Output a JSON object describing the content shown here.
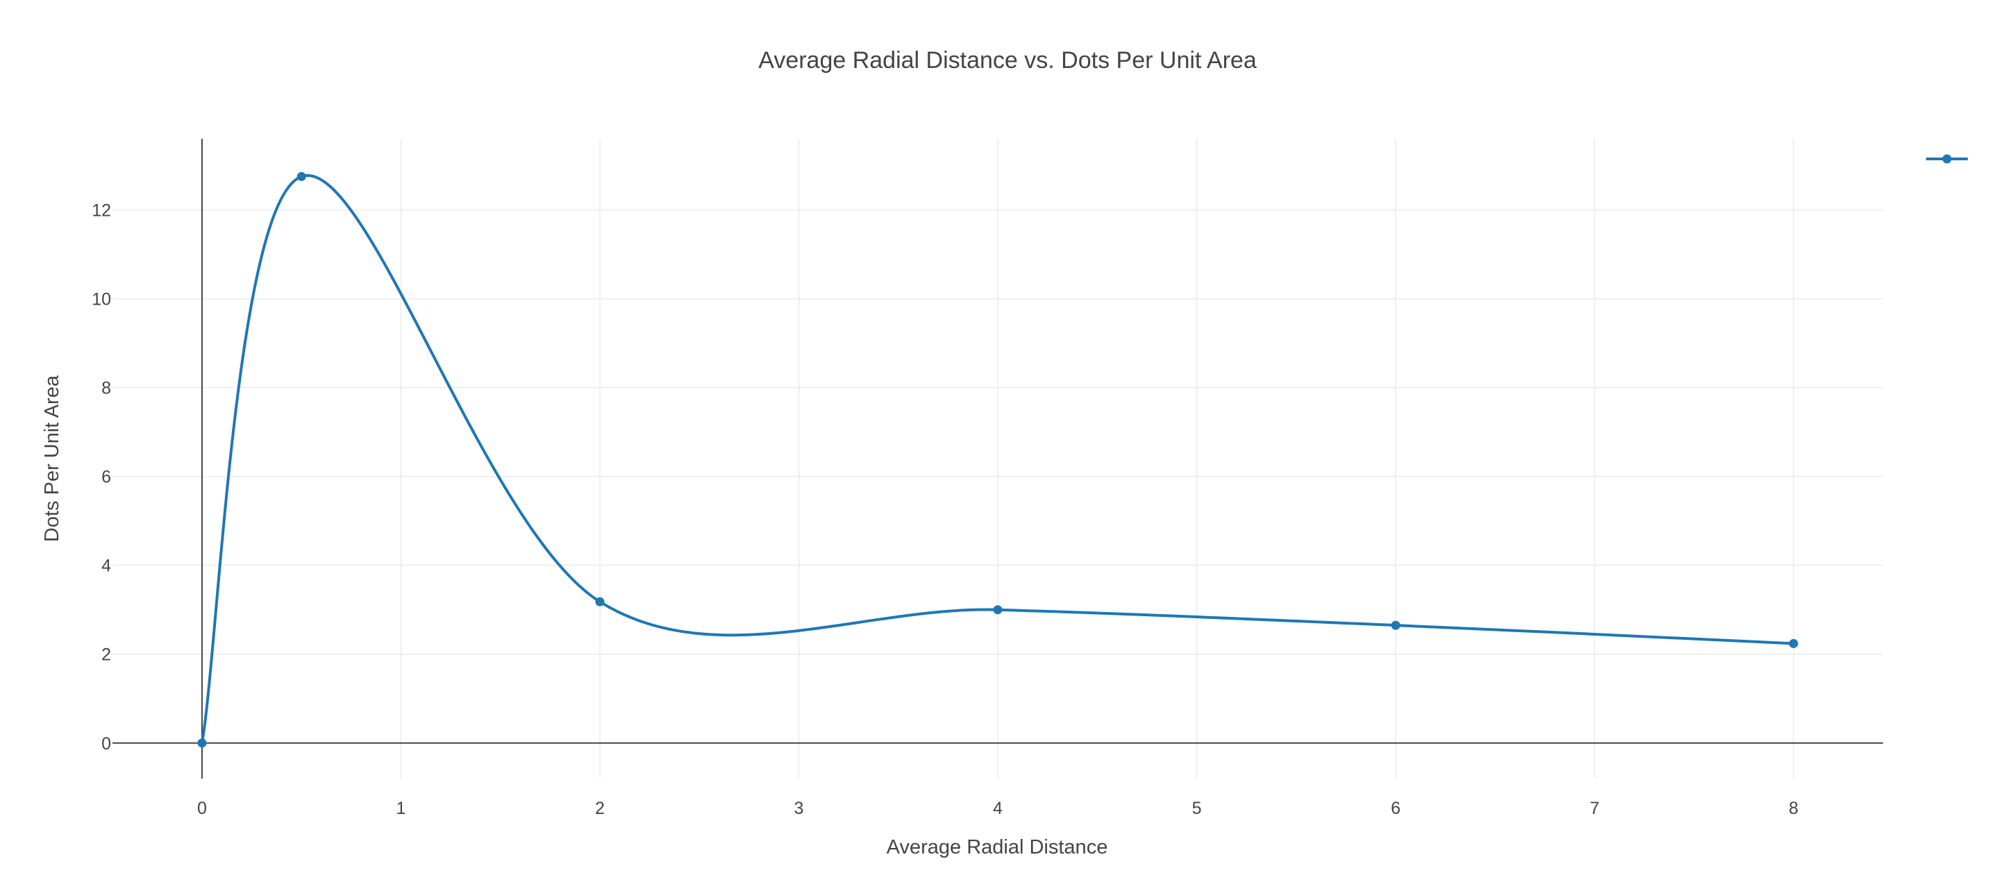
{
  "chart_data": {
    "type": "line",
    "title": "Average Radial Distance vs. Dots Per Unit Area",
    "xlabel": "Average Radial Distance",
    "ylabel": "Dots Per Unit Area",
    "xlim": [
      -0.45,
      8.45
    ],
    "ylim": [
      -0.8,
      13.6
    ],
    "x_ticks": [
      "0",
      "1",
      "2",
      "3",
      "4",
      "5",
      "6",
      "7",
      "8"
    ],
    "y_ticks": [
      "0",
      "2",
      "4",
      "6",
      "8",
      "10",
      "12"
    ],
    "x_tick_values": [
      0,
      1,
      2,
      3,
      4,
      5,
      6,
      7,
      8
    ],
    "y_tick_values": [
      0,
      2,
      4,
      6,
      8,
      10,
      12
    ],
    "grid": true,
    "line_shape": "spline",
    "legend_position": "top-right",
    "series": [
      {
        "name": "",
        "color": "#1f77b4",
        "x": [
          0,
          0.5,
          2,
          4,
          6,
          8
        ],
        "y": [
          0,
          12.75,
          3.18,
          3.0,
          2.65,
          2.24
        ]
      }
    ]
  }
}
